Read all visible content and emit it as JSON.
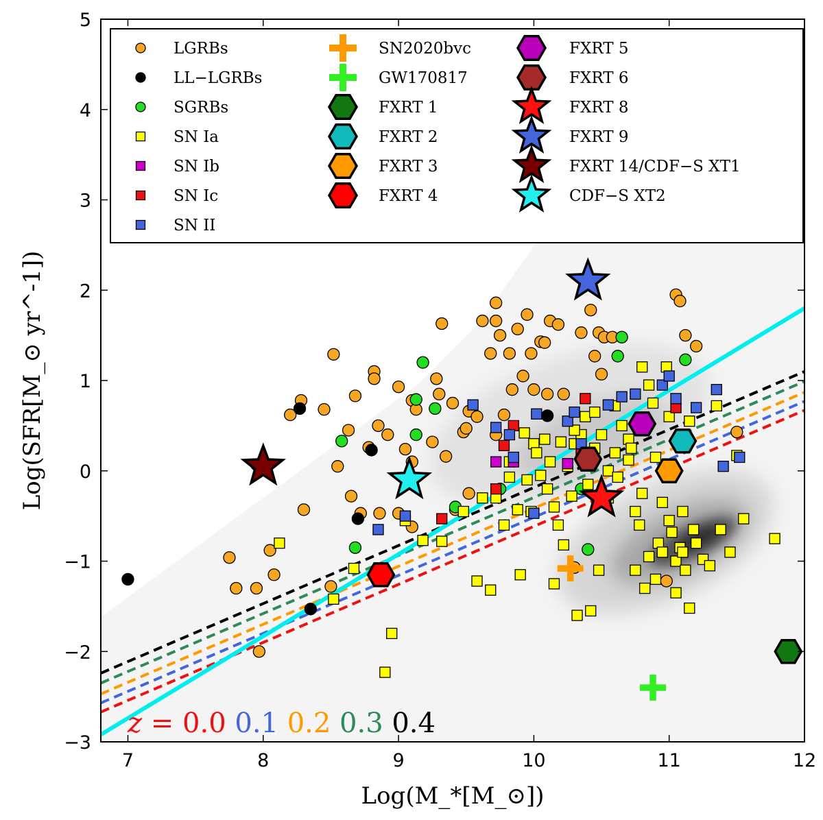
{
  "chart_data": {
    "type": "scatter",
    "title": "",
    "xlabel": "Log(M_*[M_⊙])",
    "ylabel": "Log(SFR[M_⊙ yr^-1])",
    "xlim": [
      6.8,
      12
    ],
    "ylim": [
      -3,
      5
    ],
    "xticks": [
      "7",
      "8",
      "9",
      "10",
      "11",
      "12"
    ],
    "yticks": [
      "−3",
      "−2",
      "−1",
      "0",
      "1",
      "2",
      "3",
      "4",
      "5"
    ],
    "legend_position": "top",
    "series": [
      {
        "name": "LGRBs",
        "marker": "circle",
        "color": "#f5a623",
        "points": [
          [
            7.75,
            -0.96
          ],
          [
            7.8,
            -1.3
          ],
          [
            7.95,
            -1.3
          ],
          [
            7.97,
            -2.0
          ],
          [
            8.05,
            -0.88
          ],
          [
            8.08,
            -1.15
          ],
          [
            8.2,
            0.62
          ],
          [
            8.28,
            0.78
          ],
          [
            8.3,
            -0.43
          ],
          [
            8.45,
            0.68
          ],
          [
            8.5,
            -1.28
          ],
          [
            8.52,
            1.29
          ],
          [
            8.55,
            0.05
          ],
          [
            8.63,
            0.45
          ],
          [
            8.65,
            -0.28
          ],
          [
            8.68,
            0.83
          ],
          [
            8.72,
            -0.47
          ],
          [
            8.78,
            0.26
          ],
          [
            8.82,
            1.1
          ],
          [
            8.82,
            1.02
          ],
          [
            8.85,
            0.5
          ],
          [
            8.86,
            -0.47
          ],
          [
            8.92,
            0.4
          ],
          [
            9.0,
            0.93
          ],
          [
            9.05,
            0.24
          ],
          [
            9.1,
            0.78
          ],
          [
            9.1,
            0.1
          ],
          [
            9.13,
            0.68
          ],
          [
            9.25,
            0.32
          ],
          [
            9.28,
            1.02
          ],
          [
            9.3,
            0.85
          ],
          [
            9.32,
            1.63
          ],
          [
            9.35,
            0.16
          ],
          [
            9.4,
            0.75
          ],
          [
            9.42,
            -0.43
          ],
          [
            9.48,
            0.43
          ],
          [
            9.5,
            0.47
          ],
          [
            9.52,
            0.66
          ],
          [
            9.52,
            -0.25
          ],
          [
            9.58,
            0.6
          ],
          [
            9.62,
            1.66
          ],
          [
            9.68,
            1.3
          ],
          [
            9.72,
            1.86
          ],
          [
            9.72,
            1.66
          ],
          [
            9.72,
            0.4
          ],
          [
            9.75,
            1.5
          ],
          [
            9.78,
            0.62
          ],
          [
            9.82,
            1.3
          ],
          [
            9.84,
            0.9
          ],
          [
            9.88,
            1.57
          ],
          [
            9.92,
            1.05
          ],
          [
            9.95,
            1.73
          ],
          [
            9.98,
            1.3
          ],
          [
            10.0,
            0.9
          ],
          [
            10.05,
            1.43
          ],
          [
            10.08,
            1.42
          ],
          [
            10.1,
            0.85
          ],
          [
            10.12,
            1.66
          ],
          [
            10.18,
            1.62
          ],
          [
            10.22,
            0.85
          ],
          [
            10.3,
            -1.07
          ],
          [
            10.35,
            1.53
          ],
          [
            10.42,
            1.78
          ],
          [
            10.45,
            1.27
          ],
          [
            10.48,
            1.53
          ],
          [
            10.5,
            1.07
          ],
          [
            10.52,
            1.48
          ],
          [
            10.58,
            1.48
          ],
          [
            10.98,
            -1.22
          ],
          [
            11.05,
            1.95
          ],
          [
            11.08,
            1.88
          ],
          [
            11.12,
            1.5
          ],
          [
            11.2,
            1.38
          ],
          [
            11.5,
            0.43
          ],
          [
            9.0,
            -0.47
          ],
          [
            9.1,
            -0.62
          ]
        ]
      },
      {
        "name": "LL−LGRBs",
        "marker": "circle",
        "color": "#000000",
        "points": [
          [
            7.0,
            -1.2
          ],
          [
            7.95,
            0.07
          ],
          [
            8.27,
            0.69
          ],
          [
            8.35,
            -1.53
          ],
          [
            8.7,
            -0.53
          ],
          [
            8.8,
            0.23
          ],
          [
            10.1,
            0.61
          ]
        ]
      },
      {
        "name": "SGRBs",
        "marker": "circle",
        "color": "#22dd22",
        "points": [
          [
            8.58,
            0.33
          ],
          [
            8.68,
            -0.85
          ],
          [
            9.13,
            0.79
          ],
          [
            9.13,
            0.4
          ],
          [
            9.18,
            1.2
          ],
          [
            9.27,
            0.69
          ],
          [
            9.42,
            -0.4
          ],
          [
            9.75,
            -0.2
          ],
          [
            10.4,
            -0.87
          ],
          [
            10.35,
            -0.2
          ],
          [
            10.62,
            1.27
          ],
          [
            10.65,
            1.48
          ],
          [
            11.12,
            1.23
          ]
        ]
      },
      {
        "name": "SN Ia",
        "marker": "square",
        "color": "#ffff00",
        "points": [
          [
            8.12,
            -0.8
          ],
          [
            8.52,
            -1.42
          ],
          [
            8.67,
            -1.08
          ],
          [
            8.9,
            -2.23
          ],
          [
            8.95,
            -1.8
          ],
          [
            9.05,
            -0.55
          ],
          [
            9.18,
            -0.77
          ],
          [
            9.32,
            -0.78
          ],
          [
            9.48,
            -0.45
          ],
          [
            9.58,
            -1.22
          ],
          [
            9.62,
            -0.3
          ],
          [
            9.68,
            -1.32
          ],
          [
            9.72,
            -0.3
          ],
          [
            9.78,
            -0.6
          ],
          [
            9.82,
            -0.07
          ],
          [
            9.82,
            0.1
          ],
          [
            9.88,
            -0.43
          ],
          [
            9.9,
            -1.15
          ],
          [
            9.93,
            0.42
          ],
          [
            9.95,
            -0.1
          ],
          [
            9.98,
            -0.45
          ],
          [
            10.0,
            0.3
          ],
          [
            10.02,
            0.2
          ],
          [
            10.05,
            -0.05
          ],
          [
            10.08,
            0.35
          ],
          [
            10.1,
            -0.2
          ],
          [
            10.12,
            0.1
          ],
          [
            10.15,
            -0.4
          ],
          [
            10.15,
            -1.25
          ],
          [
            10.18,
            -0.6
          ],
          [
            10.2,
            0.32
          ],
          [
            10.22,
            -0.82
          ],
          [
            10.25,
            0.05
          ],
          [
            10.28,
            -0.28
          ],
          [
            10.3,
            0.3
          ],
          [
            10.32,
            -1.6
          ],
          [
            10.35,
            0.4
          ],
          [
            10.38,
            0.6
          ],
          [
            10.4,
            -0.15
          ],
          [
            10.42,
            -1.55
          ],
          [
            10.45,
            0.65
          ],
          [
            10.48,
            -1.1
          ],
          [
            10.5,
            0.4
          ],
          [
            10.55,
            0.0
          ],
          [
            10.6,
            0.72
          ],
          [
            10.62,
            -0.07
          ],
          [
            10.65,
            0.5
          ],
          [
            10.7,
            0.35
          ],
          [
            10.72,
            0.25
          ],
          [
            10.75,
            -0.45
          ],
          [
            10.78,
            -0.6
          ],
          [
            10.8,
            1.15
          ],
          [
            10.82,
            -1.3
          ],
          [
            10.85,
            0.95
          ],
          [
            10.88,
            0.75
          ],
          [
            10.9,
            -1.2
          ],
          [
            10.92,
            -0.8
          ],
          [
            10.95,
            -0.9
          ],
          [
            10.98,
            1.15
          ],
          [
            11.0,
            0.6
          ],
          [
            11.02,
            -0.68
          ],
          [
            11.05,
            -1.0
          ],
          [
            11.08,
            -0.85
          ],
          [
            11.1,
            -0.45
          ],
          [
            11.12,
            -1.1
          ],
          [
            11.15,
            0.55
          ],
          [
            11.18,
            -0.65
          ],
          [
            11.2,
            -0.8
          ],
          [
            11.25,
            -0.98
          ],
          [
            11.3,
            -1.05
          ],
          [
            11.35,
            0.72
          ],
          [
            11.38,
            -0.65
          ],
          [
            11.45,
            -0.9
          ],
          [
            11.5,
            0.17
          ],
          [
            11.55,
            -0.53
          ],
          [
            11.78,
            -0.75
          ],
          [
            11.15,
            -1.52
          ],
          [
            11.05,
            -1.35
          ],
          [
            10.8,
            -0.25
          ],
          [
            10.7,
            0.12
          ],
          [
            10.9,
            0.15
          ],
          [
            10.95,
            -0.35
          ],
          [
            11.0,
            -0.55
          ],
          [
            11.1,
            -0.9
          ],
          [
            10.85,
            -0.95
          ],
          [
            10.75,
            -1.1
          ],
          [
            10.6,
            0.2
          ],
          [
            10.55,
            -0.3
          ],
          [
            10.45,
            0.25
          ],
          [
            10.3,
            0.45
          ]
        ]
      },
      {
        "name": "SN Ib",
        "marker": "square",
        "color": "#cc00cc",
        "points": [
          [
            9.72,
            0.1
          ],
          [
            9.85,
            0.1
          ],
          [
            10.25,
            0.08
          ],
          [
            10.8,
            0.58
          ]
        ]
      },
      {
        "name": "SN Ic",
        "marker": "square",
        "color": "#ee1111",
        "points": [
          [
            9.32,
            -0.53
          ],
          [
            9.72,
            -0.2
          ],
          [
            9.78,
            0.28
          ],
          [
            9.85,
            0.5
          ],
          [
            10.35,
            0.2
          ],
          [
            10.38,
            0.8
          ],
          [
            11.05,
            0.7
          ]
        ]
      },
      {
        "name": "SN II",
        "marker": "square",
        "color": "#4466dd",
        "points": [
          [
            8.85,
            -0.65
          ],
          [
            9.05,
            -0.5
          ],
          [
            9.55,
            0.73
          ],
          [
            9.72,
            0.48
          ],
          [
            9.82,
            0.4
          ],
          [
            9.85,
            0.15
          ],
          [
            10.0,
            -0.47
          ],
          [
            10.02,
            0.63
          ],
          [
            10.25,
            0.55
          ],
          [
            10.3,
            0.65
          ],
          [
            10.35,
            0.3
          ],
          [
            10.55,
            0.73
          ],
          [
            10.65,
            0.82
          ],
          [
            10.75,
            0.85
          ],
          [
            10.95,
            0.95
          ],
          [
            11.0,
            1.05
          ],
          [
            11.05,
            0.8
          ],
          [
            11.2,
            0.7
          ],
          [
            11.35,
            0.9
          ],
          [
            11.4,
            0.05
          ],
          [
            11.52,
            0.15
          ]
        ]
      }
    ],
    "special_markers": [
      {
        "name": "SN2020bvc",
        "marker": "plus",
        "color": "#ff9900",
        "x": 10.27,
        "y": -1.08
      },
      {
        "name": "GW170817",
        "marker": "plus",
        "color": "#33ee22",
        "x": 10.88,
        "y": -2.4
      },
      {
        "name": "FXRT 1",
        "marker": "hexagon",
        "color": "#117711",
        "x": 11.88,
        "y": -2.0
      },
      {
        "name": "FXRT 2",
        "marker": "hexagon",
        "color": "#11bbbb",
        "x": 11.1,
        "y": 0.33
      },
      {
        "name": "FXRT 3",
        "marker": "hexagon",
        "color": "#ff9900",
        "x": 11.0,
        "y": 0.0
      },
      {
        "name": "FXRT 4",
        "marker": "hexagon",
        "color": "#ff0000",
        "x": 8.87,
        "y": -1.15
      },
      {
        "name": "FXRT 5",
        "marker": "hexagon",
        "color": "#bb00bb",
        "x": 10.8,
        "y": 0.52
      },
      {
        "name": "FXRT 6",
        "marker": "hexagon",
        "color": "#a52a2a",
        "x": 10.4,
        "y": 0.13
      },
      {
        "name": "FXRT 8",
        "marker": "star",
        "color": "#ff1111",
        "x": 10.5,
        "y": -0.3
      },
      {
        "name": "FXRT 9",
        "marker": "star",
        "color": "#4466dd",
        "x": 10.4,
        "y": 2.1
      },
      {
        "name": "FXRT 14/CDF−S XT1",
        "marker": "star",
        "color": "#7a0000",
        "x": 8.0,
        "y": 0.05
      },
      {
        "name": "CDF−S XT2",
        "marker": "star",
        "color": "#22eeee",
        "x": 9.08,
        "y": -0.1
      }
    ],
    "main_sequence": {
      "redshifts": [
        {
          "z": "0.0",
          "color": "#ee1111",
          "x": [
            6.8,
            12.0
          ],
          "y": [
            -2.67,
            0.67
          ]
        },
        {
          "z": "0.1",
          "color": "#4466dd",
          "x": [
            6.8,
            12.0
          ],
          "y": [
            -2.57,
            0.77
          ]
        },
        {
          "z": "0.2",
          "color": "#ff9900",
          "x": [
            6.8,
            12.0
          ],
          "y": [
            -2.47,
            0.87
          ]
        },
        {
          "z": "0.3",
          "color": "#2e8b57",
          "x": [
            6.8,
            12.0
          ],
          "y": [
            -2.35,
            0.99
          ]
        },
        {
          "z": "0.4",
          "color": "#000000",
          "x": [
            6.8,
            12.0
          ],
          "y": [
            -2.24,
            1.1
          ]
        }
      ],
      "z_prefix": "z = "
    },
    "cyan_line": {
      "color": "#00eeee",
      "x": [
        6.8,
        12.0
      ],
      "y": [
        -2.92,
        1.8
      ]
    }
  }
}
